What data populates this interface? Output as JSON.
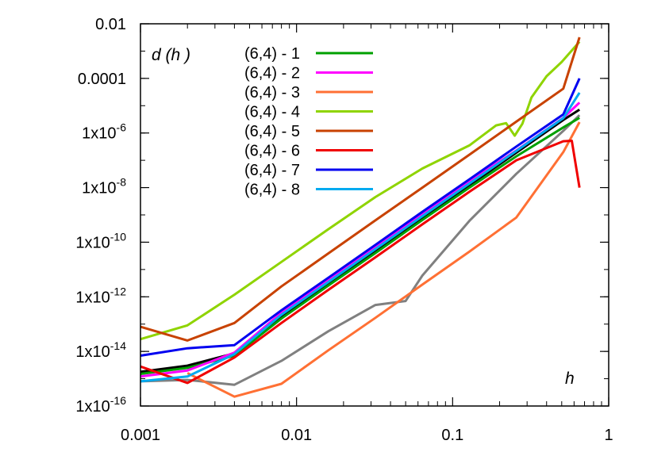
{
  "chart_data": {
    "type": "line",
    "title": "",
    "xlabel": "h",
    "ylabel": "d (h )",
    "x_scale": "log",
    "y_scale": "log",
    "xlim": [
      0.001,
      1
    ],
    "ylim": [
      1e-16,
      0.01
    ],
    "grid": false,
    "legend_position": "top-left",
    "x_ticks": [
      {
        "value": 0.001,
        "label": "0.001"
      },
      {
        "value": 0.01,
        "label": "0.01"
      },
      {
        "value": 0.1,
        "label": "0.1"
      },
      {
        "value": 1,
        "label": "1"
      }
    ],
    "y_ticks": [
      {
        "value": 1e-16,
        "base": "1x10",
        "exp": "-16"
      },
      {
        "value": 1e-14,
        "base": "1x10",
        "exp": "-14"
      },
      {
        "value": 1e-12,
        "base": "1x10",
        "exp": "-12"
      },
      {
        "value": 1e-10,
        "base": "1x10",
        "exp": "-10"
      },
      {
        "value": 1e-08,
        "base": "1x10",
        "exp": "-8"
      },
      {
        "value": 1e-06,
        "base": "1x10",
        "exp": "-6"
      },
      {
        "value": 0.0001,
        "base": "0.0001",
        "exp": ""
      },
      {
        "value": 0.01,
        "base": "0.01",
        "exp": ""
      }
    ],
    "series": [
      {
        "name": "(6,4) - 1",
        "color": "#00a000",
        "in_legend": true,
        "x": [
          0.001,
          0.002,
          0.004,
          0.008,
          0.016,
          0.032,
          0.064,
          0.128,
          0.256,
          0.512,
          0.65
        ],
        "y": [
          1.5e-15,
          2.5e-15,
          7e-15,
          1.6e-13,
          2.6e-12,
          4e-11,
          6.5e-10,
          1e-08,
          1.4e-07,
          1.6e-06,
          3.6e-06
        ]
      },
      {
        "name": "(6,4) - 2",
        "color": "#ff00ff",
        "in_legend": true,
        "x": [
          0.001,
          0.002,
          0.004,
          0.008,
          0.016,
          0.032,
          0.064,
          0.128,
          0.256,
          0.512,
          0.65
        ],
        "y": [
          1.2e-15,
          2e-15,
          9e-15,
          2.6e-13,
          4.2e-12,
          6.8e-11,
          1.1e-09,
          1.7e-08,
          2.3e-07,
          3.6e-06,
          1.3e-05
        ]
      },
      {
        "name": "(6,4) - 3",
        "color": "#ff7034",
        "in_legend": true,
        "x": [
          0.002,
          0.004,
          0.008,
          0.016,
          0.032,
          0.064,
          0.128,
          0.256,
          0.512,
          0.65
        ],
        "y": [
          1.6e-15,
          2.2e-16,
          6.5e-16,
          1.1e-14,
          1.7e-13,
          2.8e-12,
          4.5e-11,
          8e-10,
          2e-07,
          2.5e-06
        ]
      },
      {
        "name": "(6,4) - 4",
        "color": "#8fd400",
        "in_legend": true,
        "x": [
          0.001,
          0.002,
          0.004,
          0.008,
          0.016,
          0.032,
          0.064,
          0.128,
          0.19,
          0.22,
          0.25,
          0.28,
          0.32,
          0.4,
          0.5,
          0.65
        ],
        "y": [
          2.8e-14,
          9e-14,
          1.2e-12,
          1.9e-11,
          3e-10,
          4.5e-09,
          5e-08,
          3.5e-07,
          1.9e-06,
          2.3e-06,
          8e-07,
          2.2e-06,
          2e-05,
          0.00012,
          0.0004,
          0.0022
        ]
      },
      {
        "name": "(6,4) - 5",
        "color": "#c84200",
        "in_legend": true,
        "x": [
          0.001,
          0.002,
          0.004,
          0.008,
          0.016,
          0.032,
          0.064,
          0.128,
          0.256,
          0.512,
          0.65
        ],
        "y": [
          8e-14,
          2.5e-14,
          1.1e-13,
          2.4e-12,
          3.9e-11,
          6.3e-10,
          1e-08,
          1.6e-07,
          2.6e-06,
          4.2e-05,
          0.0032
        ]
      },
      {
        "name": "(6,4) - 6",
        "color": "#f00000",
        "in_legend": true,
        "x": [
          0.001,
          0.002,
          0.004,
          0.008,
          0.016,
          0.032,
          0.064,
          0.128,
          0.256,
          0.512,
          0.58,
          0.65
        ],
        "y": [
          2.8e-15,
          7e-16,
          6e-15,
          1.1e-13,
          1.8e-12,
          2.8e-11,
          4.5e-10,
          7e-09,
          1e-07,
          5e-07,
          5.2e-07,
          1e-08
        ]
      },
      {
        "name": "(6,4) - 7",
        "color": "#0000f0",
        "in_legend": true,
        "x": [
          0.001,
          0.002,
          0.004,
          0.008,
          0.016,
          0.032,
          0.064,
          0.128,
          0.256,
          0.512,
          0.65
        ],
        "y": [
          7e-15,
          1.3e-14,
          1.7e-14,
          3.2e-13,
          5e-12,
          8e-11,
          1.3e-09,
          2e-08,
          3.2e-07,
          4.8e-06,
          0.0001
        ]
      },
      {
        "name": "(6,4) - 8",
        "color": "#00aaf0",
        "in_legend": true,
        "x": [
          0.001,
          0.002,
          0.004,
          0.008,
          0.016,
          0.032,
          0.064,
          0.128,
          0.256,
          0.512,
          0.65
        ],
        "y": [
          8e-16,
          1.2e-15,
          8e-15,
          2.2e-13,
          3.5e-12,
          5.6e-11,
          9e-10,
          1.4e-08,
          2.2e-07,
          3.5e-06,
          3e-05
        ]
      },
      {
        "name": "",
        "color": "#000000",
        "in_legend": false,
        "x": [
          0.001,
          0.002,
          0.004,
          0.008,
          0.016,
          0.032,
          0.064,
          0.128,
          0.256,
          0.512,
          0.65
        ],
        "y": [
          1.8e-15,
          3e-15,
          8.5e-15,
          1.8e-13,
          2.9e-12,
          4.6e-11,
          7.4e-10,
          1.2e-08,
          1.9e-07,
          3e-06,
          7.2e-06
        ]
      },
      {
        "name": "",
        "color": "#808080",
        "in_legend": false,
        "x": [
          0.001,
          0.002,
          0.004,
          0.008,
          0.016,
          0.032,
          0.05,
          0.064,
          0.128,
          0.256,
          0.512,
          0.65
        ],
        "y": [
          8e-16,
          9e-16,
          6e-16,
          4.5e-15,
          5.5e-14,
          5e-13,
          7e-13,
          6e-12,
          6e-10,
          3.2e-08,
          1.2e-06,
          4.5e-06
        ]
      }
    ]
  }
}
